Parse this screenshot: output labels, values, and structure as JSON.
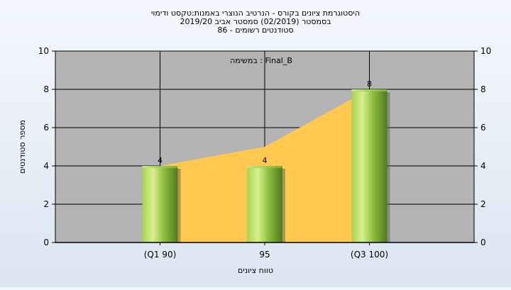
{
  "chart_data": {
    "type": "bar",
    "title_lines": [
      "היסטוגרמת ציונים בקורס - הנרטיב הנוצרי באמנות:טקסט ודימוי",
      "בסמסטר  (02/2019)  סמסטר אביב 2019/20",
      "סטודנטים רשומים - 86"
    ],
    "series_label": "במשימה : Final_B",
    "xlabel": "טווח ציונים",
    "ylabel": "מספר סטודנטים",
    "categories": [
      "(Q1 90)",
      "95",
      "(Q3 100)"
    ],
    "values": [
      4,
      4,
      8
    ],
    "area_values": [
      4,
      5,
      8
    ],
    "data_labels": [
      "4",
      "4",
      "8"
    ],
    "ylim": [
      0,
      10
    ],
    "yticks": [
      0,
      2,
      4,
      6,
      8,
      10
    ],
    "ytick_labels": [
      "0",
      "2",
      "4",
      "6",
      "8",
      "10"
    ],
    "grid": true,
    "colors": {
      "plot_bg": "#b4b4b4",
      "area_fill": "#ffc94f",
      "bar_light": "#d9ef8f",
      "bar_mid": "#9fd04a",
      "bar_dark": "#4f7a1e"
    }
  }
}
